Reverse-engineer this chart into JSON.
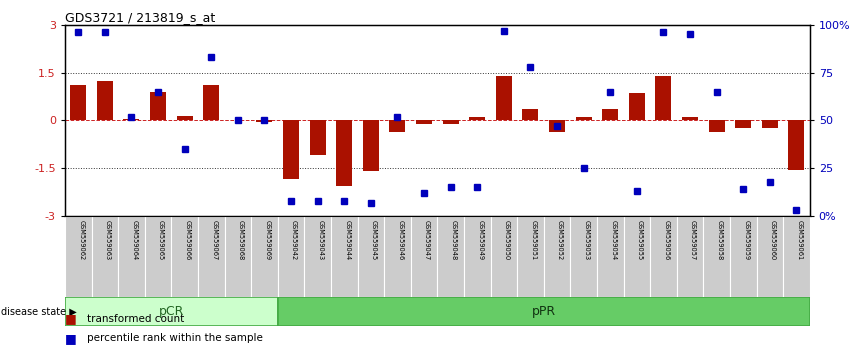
{
  "title": "GDS3721 / 213819_s_at",
  "samples": [
    "GSM559062",
    "GSM559063",
    "GSM559064",
    "GSM559065",
    "GSM559066",
    "GSM559067",
    "GSM559068",
    "GSM559069",
    "GSM559042",
    "GSM559043",
    "GSM559044",
    "GSM559045",
    "GSM559046",
    "GSM559047",
    "GSM559048",
    "GSM559049",
    "GSM559050",
    "GSM559051",
    "GSM559052",
    "GSM559053",
    "GSM559054",
    "GSM559055",
    "GSM559056",
    "GSM559057",
    "GSM559058",
    "GSM559059",
    "GSM559060",
    "GSM559061"
  ],
  "transformed_count": [
    1.1,
    1.25,
    0.05,
    0.9,
    0.15,
    1.1,
    0.0,
    -0.05,
    -1.85,
    -1.1,
    -2.05,
    -1.6,
    -0.35,
    -0.12,
    -0.12,
    0.12,
    1.38,
    0.35,
    -0.35,
    0.12,
    0.35,
    0.85,
    1.4,
    0.1,
    -0.35,
    -0.25,
    -0.25,
    -1.55
  ],
  "percentile_rank": [
    96,
    96,
    52,
    65,
    35,
    83,
    50,
    50,
    8,
    8,
    8,
    7,
    52,
    12,
    15,
    15,
    97,
    78,
    47,
    25,
    65,
    13,
    96,
    95,
    65,
    14,
    18,
    3
  ],
  "pCR_count": 8,
  "pPR_count": 20,
  "pCR_label": "pCR",
  "pPR_label": "pPR",
  "disease_state_label": "disease state",
  "bar_color": "#aa1100",
  "dot_color": "#0000bb",
  "zero_line_color": "#cc2222",
  "dotted_line_color": "#333333",
  "ylim": [
    -3,
    3
  ],
  "yticks_left": [
    -3,
    -1.5,
    0,
    1.5,
    3
  ],
  "ytick_labels_left": [
    "-3",
    "-1.5",
    "0",
    "1.5",
    "3"
  ],
  "yticks_right_pct": [
    0,
    25,
    50,
    75,
    100
  ],
  "ytick_labels_right": [
    "0%",
    "25",
    "50",
    "75",
    "100%"
  ],
  "hline_values": [
    1.5,
    -1.5
  ],
  "pCR_color": "#ccffcc",
  "pPR_color": "#66cc66",
  "sample_box_color": "#cccccc",
  "background_color": "#ffffff",
  "legend_bar_label": "transformed count",
  "legend_dot_label": "percentile rank within the sample"
}
